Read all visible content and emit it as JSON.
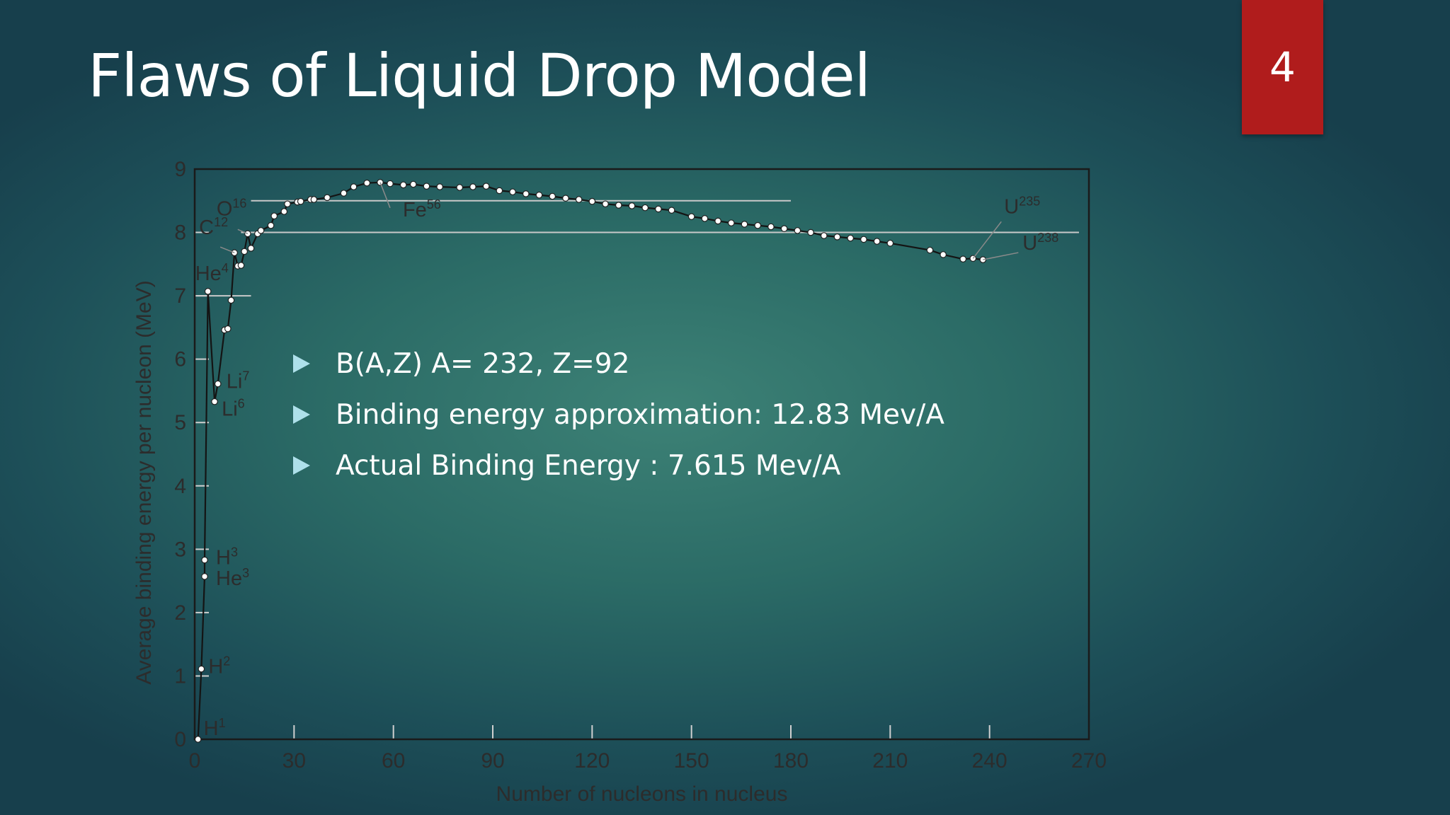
{
  "slide": {
    "title": "Flaws of Liquid Drop Model",
    "page_number": "4",
    "bullets": [
      "B(A,Z) A= 232, Z=92",
      "Binding energy approximation: 12.83 Mev/A",
      "Actual Binding Energy : 7.615 Mev/A"
    ]
  },
  "colors": {
    "page_badge": "#b01c1c",
    "bullet_marker": "#aee0ea",
    "title": "#ffffff"
  },
  "chart_data": {
    "type": "line",
    "xlabel": "Number of nucleons in nucleus",
    "ylabel": "Average binding energy per nucleon (MeV)",
    "xlim": [
      0,
      270
    ],
    "ylim": [
      0,
      9
    ],
    "x_ticks": [
      0,
      30,
      60,
      90,
      120,
      150,
      180,
      210,
      240,
      270
    ],
    "y_ticks": [
      0,
      1,
      2,
      3,
      4,
      5,
      6,
      7,
      8,
      9
    ],
    "grid": false,
    "reference_lines": [
      {
        "y": 8.5,
        "x_from": 17,
        "x_to": 180
      },
      {
        "y": 8.0,
        "x_from": 14,
        "x_to": 267
      },
      {
        "y": 7.0,
        "x_from": 0,
        "x_to": 17
      }
    ],
    "series": [
      {
        "x": [
          1,
          2,
          3,
          3,
          4,
          6,
          7,
          9,
          10,
          11,
          12,
          13,
          14,
          15,
          16,
          17,
          19,
          20,
          23,
          24,
          27,
          28,
          31,
          32,
          35,
          36,
          40,
          45,
          48,
          52,
          56,
          59,
          63,
          66,
          70,
          74,
          80,
          84,
          88,
          92,
          96,
          100,
          104,
          108,
          112,
          116,
          120,
          124,
          128,
          132,
          136,
          140,
          144,
          150,
          154,
          158,
          162,
          166,
          170,
          174,
          178,
          182,
          186,
          190,
          194,
          198,
          202,
          206,
          210,
          222,
          226,
          232,
          235,
          238
        ],
        "y": [
          0,
          1.11,
          2.57,
          2.83,
          7.07,
          5.33,
          5.61,
          6.46,
          6.48,
          6.93,
          7.68,
          7.47,
          7.48,
          7.7,
          7.98,
          7.75,
          7.98,
          8.03,
          8.11,
          8.26,
          8.33,
          8.45,
          8.48,
          8.49,
          8.52,
          8.52,
          8.55,
          8.62,
          8.72,
          8.78,
          8.79,
          8.77,
          8.75,
          8.76,
          8.73,
          8.72,
          8.71,
          8.72,
          8.73,
          8.66,
          8.64,
          8.61,
          8.59,
          8.57,
          8.54,
          8.52,
          8.49,
          8.45,
          8.43,
          8.42,
          8.39,
          8.37,
          8.35,
          8.25,
          8.22,
          8.18,
          8.15,
          8.13,
          8.11,
          8.09,
          8.06,
          8.03,
          8.0,
          7.95,
          7.93,
          7.91,
          7.89,
          7.86,
          7.83,
          7.72,
          7.65,
          7.58,
          7.59,
          7.57
        ]
      }
    ],
    "annotations": [
      {
        "label": "H",
        "sup": "1",
        "x": 1,
        "y": 0
      },
      {
        "label": "H",
        "sup": "2",
        "x": 2,
        "y": 1.11
      },
      {
        "label": "H",
        "sup": "3",
        "x": 3,
        "y": 2.83
      },
      {
        "label": "He",
        "sup": "3",
        "x": 3,
        "y": 2.57
      },
      {
        "label": "He",
        "sup": "4",
        "x": 4,
        "y": 7.07
      },
      {
        "label": "Li",
        "sup": "7",
        "x": 7,
        "y": 5.61
      },
      {
        "label": "Li",
        "sup": "6",
        "x": 6,
        "y": 5.33
      },
      {
        "label": "C",
        "sup": "12",
        "x": 12,
        "y": 7.68
      },
      {
        "label": "O",
        "sup": "16",
        "x": 16,
        "y": 7.98
      },
      {
        "label": "Fe",
        "sup": "56",
        "x": 56,
        "y": 8.79
      },
      {
        "label": "U",
        "sup": "235",
        "x": 235,
        "y": 7.59
      },
      {
        "label": "U",
        "sup": "238",
        "x": 238,
        "y": 7.57
      }
    ]
  }
}
